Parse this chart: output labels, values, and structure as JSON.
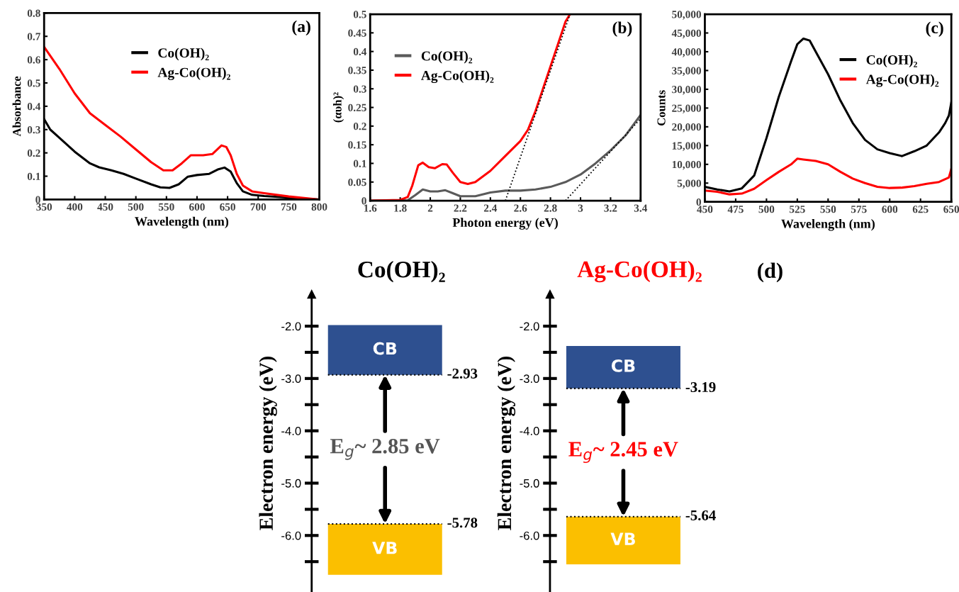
{
  "chart_data": [
    {
      "type": "line",
      "xlabel": "Wavelength (nm)",
      "ylabel": "Absorbance",
      "xlim": [
        350,
        800
      ],
      "ylim": [
        0,
        0.8
      ],
      "xticks": [
        350,
        400,
        450,
        500,
        550,
        600,
        650,
        700,
        750,
        800
      ],
      "yticks": [
        0,
        0.1,
        0.2,
        0.3,
        0.4,
        0.5,
        0.6,
        0.7,
        0.8
      ],
      "legend": "top center",
      "annotations": [
        "(a)"
      ],
      "series": [
        {
          "name": "Co(OH)₂",
          "color": "#000000",
          "x": [
            350,
            360,
            375,
            400,
            425,
            440,
            460,
            480,
            500,
            525,
            540,
            555,
            570,
            585,
            600,
            620,
            635,
            645,
            655,
            665,
            675,
            690,
            710,
            750,
            800
          ],
          "values": [
            0.345,
            0.3,
            0.265,
            0.205,
            0.155,
            0.138,
            0.125,
            0.11,
            0.09,
            0.065,
            0.052,
            0.05,
            0.065,
            0.098,
            0.105,
            0.11,
            0.13,
            0.137,
            0.12,
            0.07,
            0.035,
            0.02,
            0.015,
            0.008,
            0.0
          ]
        },
        {
          "name": "Ag-Co(OH)₂",
          "color": "#ff0000",
          "x": [
            350,
            375,
            400,
            425,
            450,
            475,
            500,
            525,
            545,
            560,
            575,
            590,
            610,
            625,
            640,
            648,
            655,
            665,
            675,
            690,
            710,
            750,
            800
          ],
          "values": [
            0.655,
            0.56,
            0.455,
            0.37,
            0.32,
            0.27,
            0.215,
            0.16,
            0.125,
            0.125,
            0.155,
            0.19,
            0.19,
            0.195,
            0.232,
            0.225,
            0.19,
            0.11,
            0.06,
            0.035,
            0.027,
            0.013,
            0.0
          ]
        }
      ]
    },
    {
      "type": "line",
      "xlabel": "Photon energy (eV)",
      "ylabel": "(αυh)²",
      "xlim": [
        1.6,
        3.4
      ],
      "ylim": [
        0,
        0.5
      ],
      "xticks": [
        1.6,
        1.8,
        2,
        2.2,
        2.4,
        2.6,
        2.8,
        3,
        3.2,
        3.4
      ],
      "yticks": [
        0,
        0.05,
        0.1,
        0.15,
        0.2,
        0.25,
        0.3,
        0.35,
        0.4,
        0.45,
        0.5
      ],
      "legend": "top left",
      "annotations": [
        "(b)"
      ],
      "series": [
        {
          "name": "Co(OH)₂",
          "color": "#5a5a5a",
          "x": [
            1.6,
            1.85,
            1.9,
            1.95,
            2.0,
            2.05,
            2.1,
            2.15,
            2.2,
            2.3,
            2.4,
            2.5,
            2.6,
            2.7,
            2.8,
            2.9,
            3.0,
            3.1,
            3.2,
            3.3,
            3.4
          ],
          "values": [
            0,
            0.001,
            0.015,
            0.03,
            0.025,
            0.025,
            0.028,
            0.02,
            0.012,
            0.012,
            0.022,
            0.027,
            0.027,
            0.03,
            0.037,
            0.05,
            0.07,
            0.1,
            0.135,
            0.175,
            0.23
          ]
        },
        {
          "name": "Ag-Co(OH)₂",
          "color": "#ff0000",
          "x": [
            1.6,
            1.8,
            1.85,
            1.88,
            1.92,
            1.95,
            1.99,
            2.03,
            2.08,
            2.11,
            2.15,
            2.2,
            2.25,
            2.3,
            2.4,
            2.5,
            2.6,
            2.65,
            2.7,
            2.75,
            2.8,
            2.85,
            2.9,
            2.93
          ],
          "values": [
            0,
            0.002,
            0.01,
            0.04,
            0.095,
            0.102,
            0.09,
            0.087,
            0.098,
            0.097,
            0.075,
            0.05,
            0.045,
            0.05,
            0.08,
            0.12,
            0.16,
            0.19,
            0.24,
            0.3,
            0.36,
            0.42,
            0.48,
            0.5
          ]
        },
        {
          "color": "#000000",
          "line_style": "dotted",
          "x": [
            2.5,
            2.93
          ],
          "values": [
            0,
            0.5
          ]
        },
        {
          "color": "#000000",
          "line_style": "dotted",
          "x": [
            2.9,
            3.4
          ],
          "values": [
            0,
            0.22
          ]
        }
      ]
    },
    {
      "type": "line",
      "xlabel": "Wavelength (nm)",
      "ylabel": "Counts",
      "xlim": [
        450,
        650
      ],
      "ylim": [
        0,
        50000
      ],
      "xticks": [
        450,
        475,
        500,
        525,
        550,
        575,
        600,
        625,
        650
      ],
      "yticks": [
        0,
        {
          "value": 5000,
          "label": "5,000"
        },
        {
          "value": 10000,
          "label": "10,000"
        },
        {
          "value": 15000,
          "label": "15,000"
        },
        {
          "value": 20000,
          "label": "20,000"
        },
        {
          "value": 25000,
          "label": "25,000"
        },
        {
          "value": 30000,
          "label": "30,000"
        },
        {
          "value": 35000,
          "label": "35,000"
        },
        {
          "value": 40000,
          "label": "40,000"
        },
        {
          "value": 45000,
          "label": "45,000"
        },
        {
          "value": 50000,
          "label": "50,000"
        }
      ],
      "legend": "top right",
      "annotations": [
        "(c)"
      ],
      "series": [
        {
          "name": "Co(OH)₂",
          "color": "#000000",
          "x": [
            450,
            460,
            470,
            480,
            490,
            500,
            510,
            520,
            525,
            530,
            535,
            540,
            550,
            560,
            570,
            580,
            590,
            600,
            610,
            620,
            630,
            640,
            645,
            648,
            650
          ],
          "values": [
            4000,
            3300,
            2800,
            3600,
            7000,
            17000,
            28000,
            37500,
            42000,
            43500,
            43000,
            40000,
            34000,
            27000,
            21000,
            16500,
            14000,
            13000,
            12200,
            13500,
            15000,
            18500,
            21000,
            23000,
            26500
          ]
        },
        {
          "name": "Ag-Co(OH)₂",
          "color": "#ff0000",
          "x": [
            450,
            460,
            470,
            480,
            490,
            500,
            510,
            520,
            525,
            530,
            540,
            550,
            560,
            570,
            580,
            590,
            600,
            610,
            620,
            630,
            640,
            648,
            650
          ],
          "values": [
            3000,
            2700,
            2000,
            2200,
            3500,
            5800,
            8000,
            10000,
            11500,
            11300,
            10900,
            10000,
            8000,
            6200,
            5000,
            4000,
            3700,
            3800,
            4200,
            4800,
            5300,
            6500,
            8800
          ]
        }
      ]
    },
    {
      "type": "bar",
      "title": "Co(OH)₂",
      "ylabel": "Electron energy (eV)",
      "ylim": [
        -7.08,
        -1.39
      ],
      "yticks": [
        {
          "value": -2,
          "label": "-2.0"
        },
        {
          "value": -3,
          "label": "-3.0"
        },
        {
          "value": -4,
          "label": "-4.0"
        },
        {
          "value": -5,
          "label": "-5.0"
        },
        {
          "value": -6,
          "label": "-6.0"
        }
      ],
      "categories": [
        null
      ],
      "series": [
        {
          "name": "CB",
          "color": "#2e5090",
          "base": [
            -2.93
          ],
          "values": [
            0.95
          ]
        },
        {
          "name": "VB",
          "color": "#fbbf00",
          "base": [
            -6.75
          ],
          "values": [
            0.97
          ]
        }
      ],
      "ref_lines": [
        {
          "axis": "y",
          "value": -2.93,
          "label": "-2.93",
          "color": "#000000",
          "line_style": "dotted"
        },
        {
          "axis": "y",
          "value": -5.78,
          "label": "-5.78",
          "color": "#000000",
          "line_style": "dotted"
        }
      ],
      "annotations": [
        "E$_{g}$~ 2.85 eV"
      ]
    },
    {
      "type": "bar",
      "title": "Ag-Co(OH)₂",
      "ylabel": "Electron energy (eV)",
      "ylim": [
        -7.08,
        -1.39
      ],
      "yticks": [
        {
          "value": -2,
          "label": "-2.0"
        },
        {
          "value": -3,
          "label": "-3.0"
        },
        {
          "value": -4,
          "label": "-4.0"
        },
        {
          "value": -5,
          "label": "-5.0"
        },
        {
          "value": -6,
          "label": "-6.0"
        }
      ],
      "categories": [
        null
      ],
      "series": [
        {
          "name": "CB",
          "color": "#2e5090",
          "base": [
            -3.19
          ],
          "values": [
            0.81
          ]
        },
        {
          "name": "VB",
          "color": "#fbbf00",
          "base": [
            -6.55
          ],
          "values": [
            0.91
          ]
        }
      ],
      "ref_lines": [
        {
          "axis": "y",
          "value": -3.19,
          "label": "-3.19",
          "color": "#000000",
          "line_style": "dotted"
        },
        {
          "axis": "y",
          "value": -5.64,
          "label": "-5.64",
          "color": "#000000",
          "line_style": "dotted"
        }
      ],
      "annotations": [
        "E$_{g}$~ 2.45 eV",
        "(d)"
      ]
    }
  ]
}
